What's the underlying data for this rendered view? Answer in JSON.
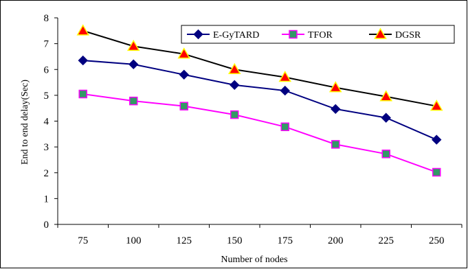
{
  "chart_data": {
    "type": "line",
    "categories": [
      "75",
      "100",
      "125",
      "150",
      "175",
      "200",
      "225",
      "250"
    ],
    "series": [
      {
        "name": "E-GyTARD",
        "color": "#000080",
        "marker": "diamond",
        "values": [
          6.35,
          6.2,
          5.8,
          5.4,
          5.18,
          4.47,
          4.13,
          3.28
        ]
      },
      {
        "name": "TFOR",
        "color": "#ff00ff",
        "marker": "square",
        "marker_fill": "#339966",
        "values": [
          5.05,
          4.78,
          4.58,
          4.25,
          3.78,
          3.1,
          2.73,
          2.02
        ]
      },
      {
        "name": "DGSR",
        "color": "#000000",
        "marker": "triangle",
        "marker_fill": "#ff0000",
        "marker_stroke": "#ffff00",
        "values": [
          7.5,
          6.9,
          6.6,
          6.0,
          5.7,
          5.3,
          4.95,
          4.58
        ]
      }
    ],
    "xlabel": "Number of nodes",
    "ylabel": "End to end delay(Sec)",
    "ylim": [
      0,
      8
    ],
    "yticks": [
      "0",
      "1",
      "2",
      "3",
      "4",
      "5",
      "6",
      "7",
      "8"
    ],
    "grid": false,
    "legend_position": "top-right"
  }
}
